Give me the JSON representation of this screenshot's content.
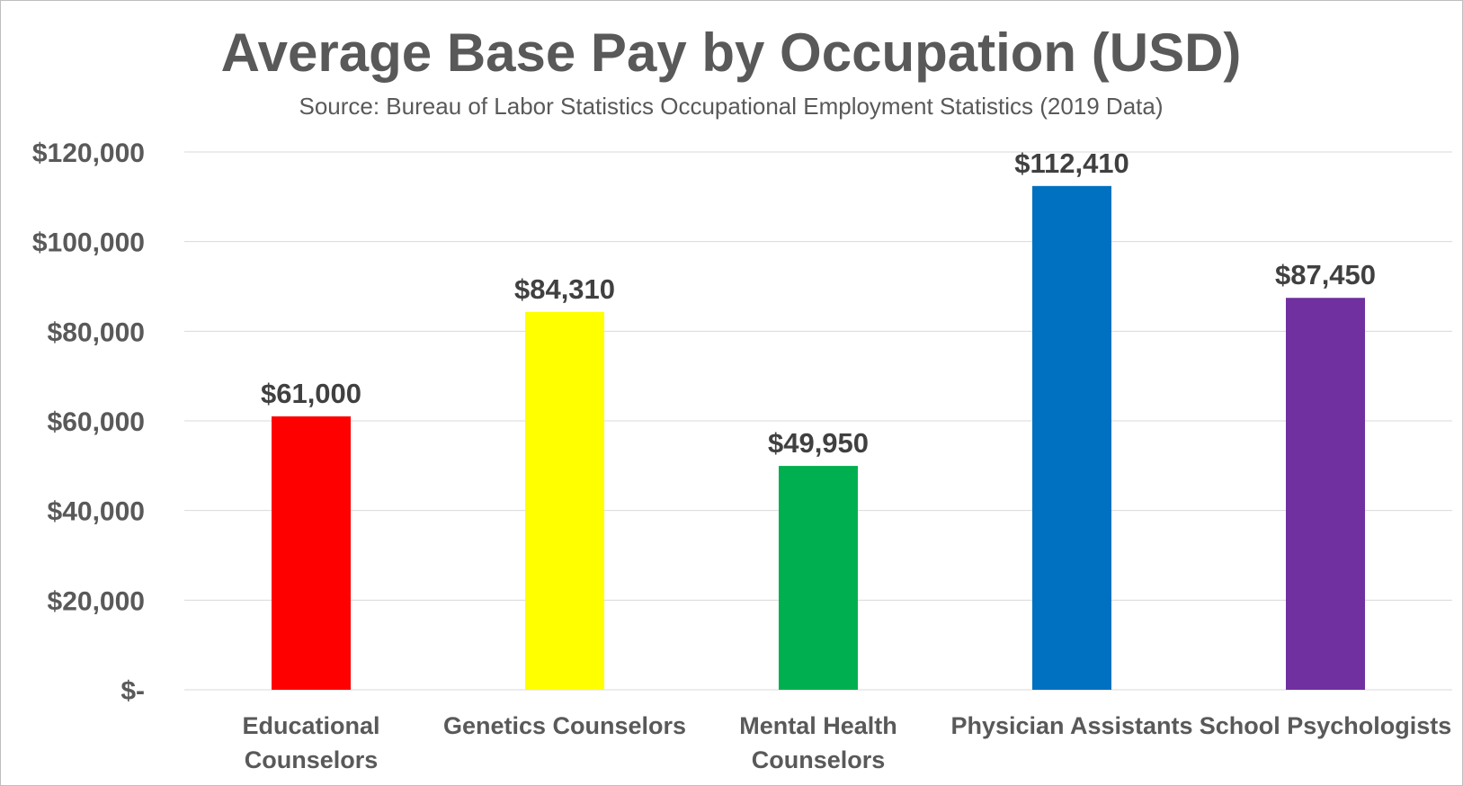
{
  "chart_data": {
    "type": "bar",
    "title": "Average Base Pay by Occupation (USD)",
    "subtitle": "Source: Bureau of Labor Statistics Occupational Employment Statistics (2019 Data)",
    "categories": [
      [
        "Educational",
        "Counselors"
      ],
      [
        "Genetics Counselors"
      ],
      [
        "Mental Health",
        "Counselors"
      ],
      [
        "Physician Assistants"
      ],
      [
        "School Psychologists"
      ]
    ],
    "values": [
      61000,
      84310,
      49950,
      112410,
      87450
    ],
    "data_labels": [
      "$61,000",
      "$84,310",
      "$49,950",
      "$112,410",
      "$87,450"
    ],
    "colors": [
      "#ff0000",
      "#ffff00",
      "#00b050",
      "#0070c0",
      "#7030a0"
    ],
    "ylim": [
      0,
      120000
    ],
    "yticks": [
      0,
      20000,
      40000,
      60000,
      80000,
      100000,
      120000
    ],
    "ytick_labels": [
      "$-",
      "$20,000",
      "$40,000",
      "$60,000",
      "$80,000",
      "$100,000",
      "$120,000"
    ],
    "xlabel": "",
    "ylabel": "",
    "grid": true,
    "legend": "none"
  }
}
